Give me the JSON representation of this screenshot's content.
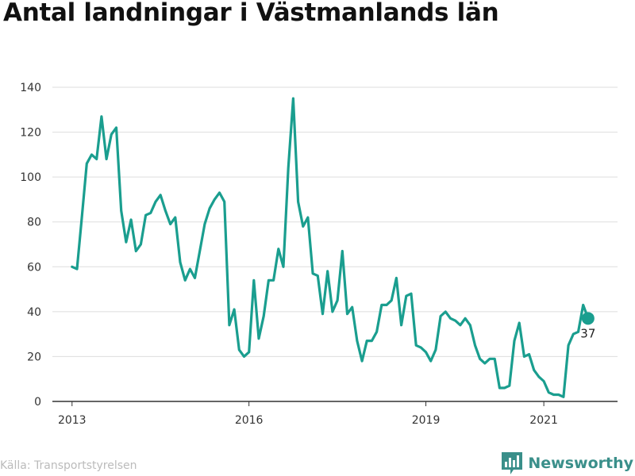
{
  "chart_title": "Antal landningar i Västmanlands län",
  "source": "Källa: Transportstyrelsen",
  "brand": {
    "name": "Newsworthy",
    "icon": "bar-chart-logo-icon"
  },
  "colors": {
    "line": "#1a9e8f",
    "axis": "#333333",
    "grid": "#dddddd",
    "text": "#333333",
    "brand": "#3a8f8a"
  },
  "chart_data": {
    "type": "line",
    "title": "Antal landningar i Västmanlands län",
    "xlabel": "",
    "ylabel": "",
    "x_ticks": [
      {
        "label": "2013",
        "x": "2013-01"
      },
      {
        "label": "2016",
        "x": "2016-01"
      },
      {
        "label": "2019",
        "x": "2019-01"
      },
      {
        "label": "2021",
        "x": "2021-01"
      }
    ],
    "y_ticks": [
      0,
      20,
      40,
      60,
      80,
      100,
      120,
      140
    ],
    "ylim": [
      0,
      140
    ],
    "grid": {
      "horizontal": true,
      "vertical": false
    },
    "last_value_label": "37",
    "series": [
      {
        "x": [
          "2013-01",
          "2013-02",
          "2013-03",
          "2013-04",
          "2013-05",
          "2013-06",
          "2013-07",
          "2013-08",
          "2013-09",
          "2013-10",
          "2013-11",
          "2013-12",
          "2014-01",
          "2014-02",
          "2014-03",
          "2014-04",
          "2014-05",
          "2014-06",
          "2014-07",
          "2014-08",
          "2014-09",
          "2014-10",
          "2014-11",
          "2014-12",
          "2015-01",
          "2015-02",
          "2015-03",
          "2015-04",
          "2015-05",
          "2015-06",
          "2015-07",
          "2015-08",
          "2015-09",
          "2015-10",
          "2015-11",
          "2015-12",
          "2016-01",
          "2016-02",
          "2016-03",
          "2016-04",
          "2016-05",
          "2016-06",
          "2016-07",
          "2016-08",
          "2016-09",
          "2016-10",
          "2016-11",
          "2016-12",
          "2017-01",
          "2017-02",
          "2017-03",
          "2017-04",
          "2017-05",
          "2017-06",
          "2017-07",
          "2017-08",
          "2017-09",
          "2017-10",
          "2017-11",
          "2017-12",
          "2018-01",
          "2018-02",
          "2018-03",
          "2018-04",
          "2018-05",
          "2018-06",
          "2018-07",
          "2018-08",
          "2018-09",
          "2018-10",
          "2018-11",
          "2018-12",
          "2019-01",
          "2019-02",
          "2019-03",
          "2019-04",
          "2019-05",
          "2019-06",
          "2019-07",
          "2019-08",
          "2019-09",
          "2019-10",
          "2019-11",
          "2019-12",
          "2020-01",
          "2020-02",
          "2020-03",
          "2020-04",
          "2020-05",
          "2020-06",
          "2020-07",
          "2020-08",
          "2020-09",
          "2020-10",
          "2020-11",
          "2020-12",
          "2021-01",
          "2021-02",
          "2021-03",
          "2021-04",
          "2021-05",
          "2021-06",
          "2021-07",
          "2021-08",
          "2021-09",
          "2021-10"
        ],
        "values": [
          60,
          59,
          82,
          106,
          110,
          108,
          127,
          108,
          119,
          122,
          85,
          71,
          81,
          67,
          70,
          83,
          84,
          89,
          92,
          85,
          79,
          82,
          62,
          54,
          59,
          55,
          67,
          79,
          86,
          90,
          93,
          89,
          34,
          41,
          23,
          20,
          22,
          54,
          28,
          38,
          54,
          54,
          68,
          60,
          104,
          135,
          89,
          78,
          82,
          57,
          56,
          39,
          58,
          40,
          45,
          67,
          39,
          42,
          27,
          18,
          27,
          27,
          31,
          43,
          43,
          45,
          55,
          34,
          47,
          48,
          25,
          24,
          22,
          18,
          23,
          38,
          40,
          37,
          36,
          34,
          37,
          34,
          25,
          19,
          17,
          19,
          19,
          6,
          6,
          7,
          27,
          35,
          20,
          21,
          14,
          11,
          9,
          4,
          3,
          3,
          2,
          25,
          30,
          31,
          43,
          37
        ]
      }
    ]
  }
}
